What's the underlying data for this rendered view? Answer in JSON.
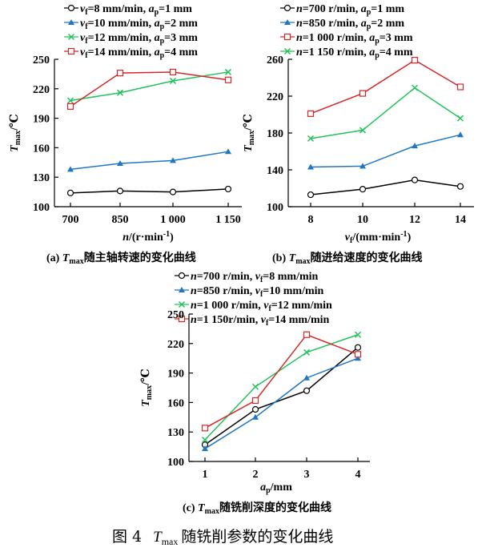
{
  "figure_caption": "图 4　Tmax 随铣削参数的变化曲线",
  "chart_data": [
    {
      "type": "line",
      "caption": "(a) Tmax随主轴转速的变化曲线",
      "xlabel": "n/(r·min-1)",
      "ylabel": "Tmax/℃",
      "categories": [
        "700",
        "850",
        "1 000",
        "1 150"
      ],
      "ylim": [
        100,
        250
      ],
      "yticks": [
        100,
        130,
        160,
        190,
        220,
        250
      ],
      "legend_position": "top-left (outside plot)",
      "series": [
        {
          "name": "vf=8 mm/min, ap=1 mm",
          "color": "#000000",
          "marker": "circle",
          "values": [
            114,
            116,
            115,
            118
          ]
        },
        {
          "name": "vf=10 mm/min, ap=2 mm",
          "color": "#1f77c4",
          "marker": "triangle",
          "values": [
            138,
            144,
            147,
            156
          ]
        },
        {
          "name": "vf=12 mm/min, ap=3 mm",
          "color": "#22c35a",
          "marker": "x",
          "values": [
            208,
            216,
            228,
            237
          ]
        },
        {
          "name": "vf=14 mm/min, ap=4 mm",
          "color": "#d62728",
          "marker": "square",
          "values": [
            202,
            236,
            237,
            229
          ]
        }
      ]
    },
    {
      "type": "line",
      "caption": "(b) Tmax随进给速度的变化曲线",
      "xlabel": "vf/(mm·min-1)",
      "ylabel": "Tmax/℃",
      "categories": [
        "8",
        "10",
        "12",
        "14"
      ],
      "ylim": [
        100,
        260
      ],
      "yticks": [
        100,
        140,
        180,
        220,
        260
      ],
      "legend_position": "top-left (outside plot)",
      "series": [
        {
          "name": "n=700 r/min, ap=1 mm",
          "color": "#000000",
          "marker": "circle",
          "values": [
            113,
            119,
            129,
            122
          ]
        },
        {
          "name": "n=850 r/min, ap=2 mm",
          "color": "#1f77c4",
          "marker": "triangle",
          "values": [
            143,
            144,
            166,
            178
          ]
        },
        {
          "name": "n=1 000 r/min, ap=3 mm",
          "color": "#d62728",
          "marker": "square",
          "values": [
            201,
            223,
            259,
            230
          ]
        },
        {
          "name": "n=1 150 r/min, ap=4 mm",
          "color": "#22c35a",
          "marker": "x",
          "values": [
            174,
            183,
            229,
            196
          ]
        }
      ]
    },
    {
      "type": "line",
      "caption": "(c) Tmax随铣削深度的变化曲线",
      "xlabel": "ap/mm",
      "ylabel": "Tmax/℃",
      "categories": [
        "1",
        "2",
        "3",
        "4"
      ],
      "ylim": [
        100,
        250
      ],
      "yticks": [
        100,
        130,
        160,
        190,
        220,
        250
      ],
      "legend_position": "top-left (outside plot)",
      "series": [
        {
          "name": "n=700 r/min, vf=8 mm/min",
          "color": "#000000",
          "marker": "circle",
          "values": [
            117,
            153,
            172,
            216
          ]
        },
        {
          "name": "n=850 r/min, vf=10 mm/min",
          "color": "#1f77c4",
          "marker": "triangle",
          "values": [
            113,
            145,
            185,
            205
          ]
        },
        {
          "name": "n=1 000 r/min, vf=12 mm/min",
          "color": "#22c35a",
          "marker": "x",
          "values": [
            122,
            176,
            211,
            229
          ]
        },
        {
          "name": "n=1 150r/min, vf=14 mm/min",
          "color": "#d62728",
          "marker": "square",
          "values": [
            134,
            162,
            229,
            209
          ]
        }
      ]
    }
  ]
}
